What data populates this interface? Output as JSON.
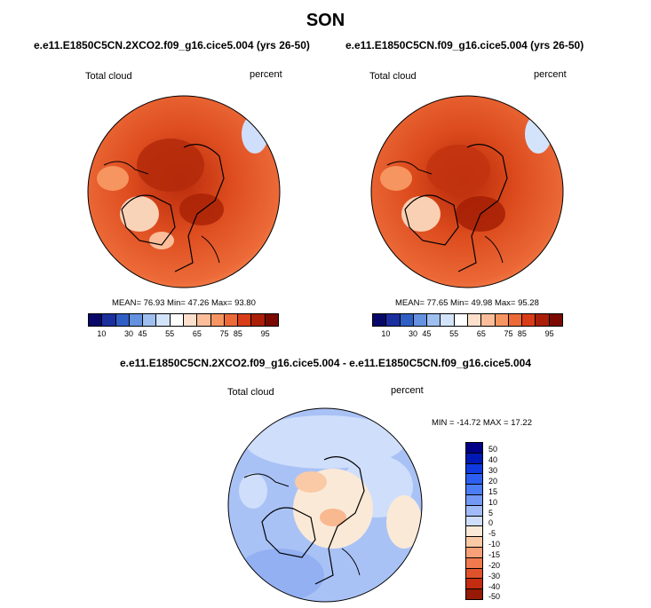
{
  "season": "SON",
  "panels": [
    {
      "title": "e.e11.E1850C5CN.2XCO2.f09_g16.cice5.004 (yrs 26-50)",
      "variable": "Total cloud",
      "units": "percent",
      "stats_text": "MEAN=  76.93  Min=  47.26  Max=  93.80",
      "mean": 76.93,
      "min": 47.26,
      "max": 93.8
    },
    {
      "title": "e.e11.E1850C5CN.f09_g16.cice5.004 (yrs 26-50)",
      "variable": "Total cloud",
      "units": "percent",
      "stats_text": "MEAN=  77.65  Min=  49.98  Max=  95.28",
      "mean": 77.65,
      "min": 49.98,
      "max": 95.28
    }
  ],
  "diff": {
    "title": "e.e11.E1850C5CN.2XCO2.f09_g16.cice5.004 - e.e11.E1850C5CN.f09_g16.cice5.004",
    "variable": "Total cloud",
    "units": "percent",
    "stats_text": "MIN = -14.72 MAX =  17.22",
    "min": -14.72,
    "max": 17.22
  },
  "abs_colorbar": {
    "colors": [
      "#08086b",
      "#1c2f9e",
      "#2f5ec4",
      "#6492e0",
      "#9ebff0",
      "#d3e4fa",
      "#ffffff",
      "#fde0cc",
      "#fbbd9a",
      "#f6955f",
      "#ec6a38",
      "#d93d17",
      "#ab1f08",
      "#7a0900"
    ],
    "labels": [
      "10",
      "30",
      "45",
      "55",
      "65",
      "75",
      "85",
      "95"
    ]
  },
  "diff_colorbar": {
    "colors": [
      "#000087",
      "#0019b5",
      "#0f3ae0",
      "#2c5ff2",
      "#4c7df5",
      "#7499f5",
      "#a0bbf7",
      "#cfdefb",
      "#fbe9d8",
      "#fac9a5",
      "#f8a077",
      "#f07a4e",
      "#e0522b",
      "#c42c12",
      "#961a05"
    ],
    "labels": [
      "50",
      "40",
      "30",
      "20",
      "15",
      "10",
      "5",
      "0",
      "-5",
      "-10",
      "-15",
      "-20",
      "-30",
      "-40",
      "-50"
    ]
  }
}
